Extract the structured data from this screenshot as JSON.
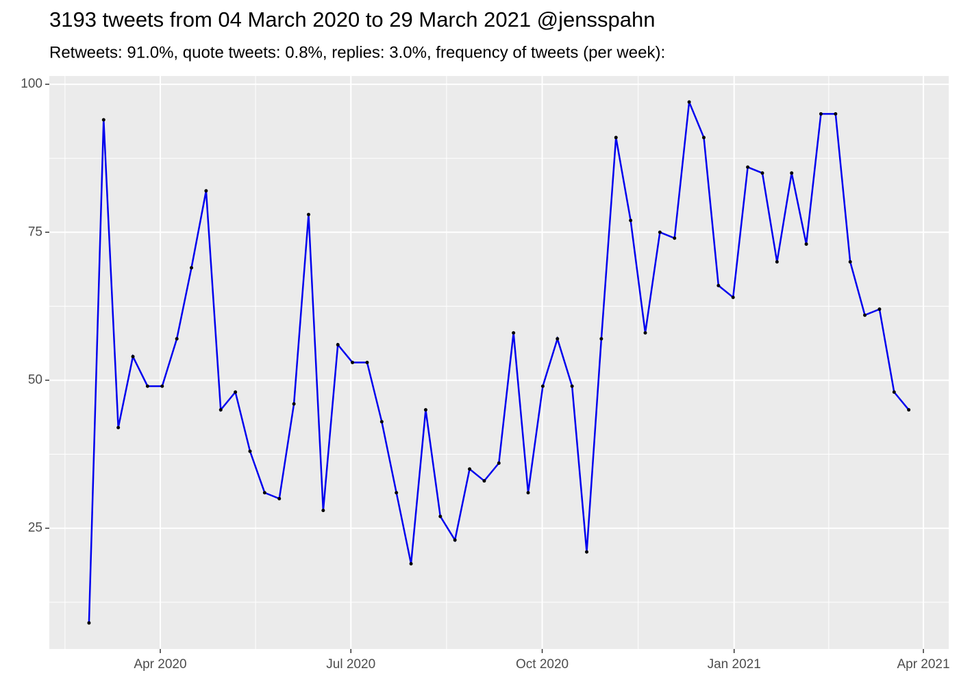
{
  "chart_data": {
    "type": "line",
    "title": "3193 tweets from 04 March 2020 to 29 March 2021 @jensspahn",
    "subtitle": "Retweets: 91.0%, quote tweets: 0.8%, replies: 3.0%, frequency of tweets (per week):",
    "x": [
      0,
      1,
      2,
      3,
      4,
      5,
      6,
      7,
      8,
      9,
      10,
      11,
      12,
      13,
      14,
      15,
      16,
      17,
      18,
      19,
      20,
      21,
      22,
      23,
      24,
      25,
      26,
      27,
      28,
      29,
      30,
      31,
      32,
      33,
      34,
      35,
      36,
      37,
      38,
      39,
      40,
      41,
      42,
      43,
      44,
      45,
      46,
      47,
      48,
      49,
      50,
      51,
      52,
      53,
      54,
      55,
      56
    ],
    "series": [
      {
        "color": "#0000ee",
        "values": [
          9,
          94,
          42,
          54,
          49,
          49,
          57,
          69,
          82,
          45,
          48,
          38,
          31,
          30,
          46,
          78,
          28,
          56,
          53,
          53,
          43,
          31,
          19,
          45,
          27,
          23,
          35,
          33,
          36,
          58,
          31,
          49,
          57,
          49,
          21,
          57,
          91,
          77,
          58,
          75,
          74,
          97,
          91,
          66,
          64,
          86,
          85,
          70,
          85,
          73,
          95,
          95,
          70,
          61,
          62,
          48,
          45
        ]
      }
    ],
    "xlim": [
      -2.71,
      58.73
    ],
    "xticks": [
      {
        "value": 4.87,
        "label": "Apr 2020"
      },
      {
        "value": 17.89,
        "label": "Jul 2020"
      },
      {
        "value": 30.96,
        "label": "Oct 2020"
      },
      {
        "value": 44.07,
        "label": "Jan 2021"
      },
      {
        "value": 57.0,
        "label": "Apr 2021"
      }
    ],
    "ylim": [
      4.6,
      101.4
    ],
    "yticks": [
      25,
      50,
      75,
      100
    ],
    "grid": true
  }
}
